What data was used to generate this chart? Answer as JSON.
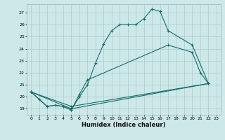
{
  "xlabel": "Humidex (Indice chaleur)",
  "bg_color": "#cce8e8",
  "grid_color": "#aacccc",
  "line_color": "#1a6b6b",
  "xlim": [
    -0.5,
    23.5
  ],
  "ylim": [
    18.5,
    27.7
  ],
  "yticks": [
    19,
    20,
    21,
    22,
    23,
    24,
    25,
    26,
    27
  ],
  "xticks": [
    0,
    1,
    2,
    3,
    4,
    5,
    6,
    7,
    8,
    9,
    10,
    11,
    12,
    13,
    14,
    15,
    16,
    17,
    18,
    19,
    20,
    21,
    22,
    23
  ],
  "lines": [
    {
      "x": [
        0,
        1,
        2,
        3,
        4,
        5,
        6,
        7,
        8,
        9,
        10,
        11,
        12,
        13,
        14,
        15,
        16,
        17,
        20,
        22
      ],
      "y": [
        20.4,
        19.8,
        19.2,
        19.3,
        19.2,
        18.9,
        20.0,
        21.0,
        22.8,
        24.4,
        25.5,
        26.0,
        26.0,
        26.0,
        26.5,
        27.3,
        27.1,
        25.5,
        24.3,
        21.1
      ]
    },
    {
      "x": [
        0,
        2,
        3,
        4,
        5,
        6,
        7,
        17,
        20,
        21,
        22
      ],
      "y": [
        20.4,
        19.2,
        19.3,
        19.2,
        18.9,
        20.2,
        21.4,
        24.3,
        23.7,
        22.0,
        21.1
      ]
    },
    {
      "x": [
        0,
        5,
        22
      ],
      "y": [
        20.4,
        19.2,
        21.1
      ]
    },
    {
      "x": [
        0,
        5,
        22
      ],
      "y": [
        20.4,
        19.0,
        21.1
      ]
    }
  ]
}
